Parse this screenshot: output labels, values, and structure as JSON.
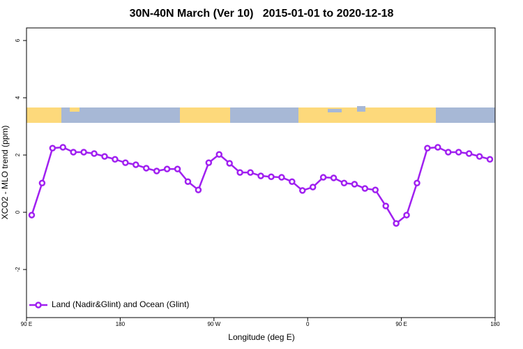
{
  "chart_data": {
    "type": "line",
    "title": "30N-40N March (Ver 10)   2015-01-01 to 2020-12-18",
    "x_label": "Longitude (deg E)",
    "y_label": "XCO2 - MLO trend (ppm)",
    "x": [
      95,
      105,
      115,
      125,
      135,
      145,
      155,
      165,
      175,
      185,
      195,
      205,
      215,
      225,
      235,
      245,
      255,
      265,
      275,
      285,
      295,
      305,
      315,
      325,
      335,
      345,
      355,
      365,
      375,
      385,
      395,
      405,
      415,
      425,
      435,
      445,
      455,
      465,
      475,
      485,
      495,
      505,
      515,
      525,
      535
    ],
    "series": [
      {
        "name": "Land (Nadir&Glint) and Ocean (Glint)",
        "color": "#a020f0",
        "values": [
          -0.1,
          1.02,
          2.24,
          2.27,
          2.1,
          2.1,
          2.05,
          1.95,
          1.85,
          1.73,
          1.66,
          1.54,
          1.44,
          1.51,
          1.51,
          1.07,
          0.78,
          1.73,
          2.02,
          1.71,
          1.39,
          1.39,
          1.27,
          1.24,
          1.22,
          1.07,
          0.76,
          0.88,
          1.22,
          1.2,
          1.02,
          0.98,
          0.83,
          0.78,
          0.22,
          -0.39,
          -0.1,
          1.02,
          2.24,
          2.27,
          2.1,
          2.1,
          2.05,
          1.95,
          1.85
        ]
      }
    ],
    "xlim": [
      90,
      540
    ],
    "xticks": [
      {
        "value": 90,
        "label": "90 E"
      },
      180,
      {
        "value": 270,
        "label": "90 W"
      },
      {
        "value": 360,
        "label": "0"
      },
      {
        "value": 450,
        "label": "90 E"
      },
      {
        "value": 540,
        "label": "180"
      }
    ],
    "ylim": [
      -3.68,
      6.44
    ],
    "yticks": [
      -2,
      0,
      2,
      4,
      6
    ],
    "legend_position": "bottom-left"
  }
}
